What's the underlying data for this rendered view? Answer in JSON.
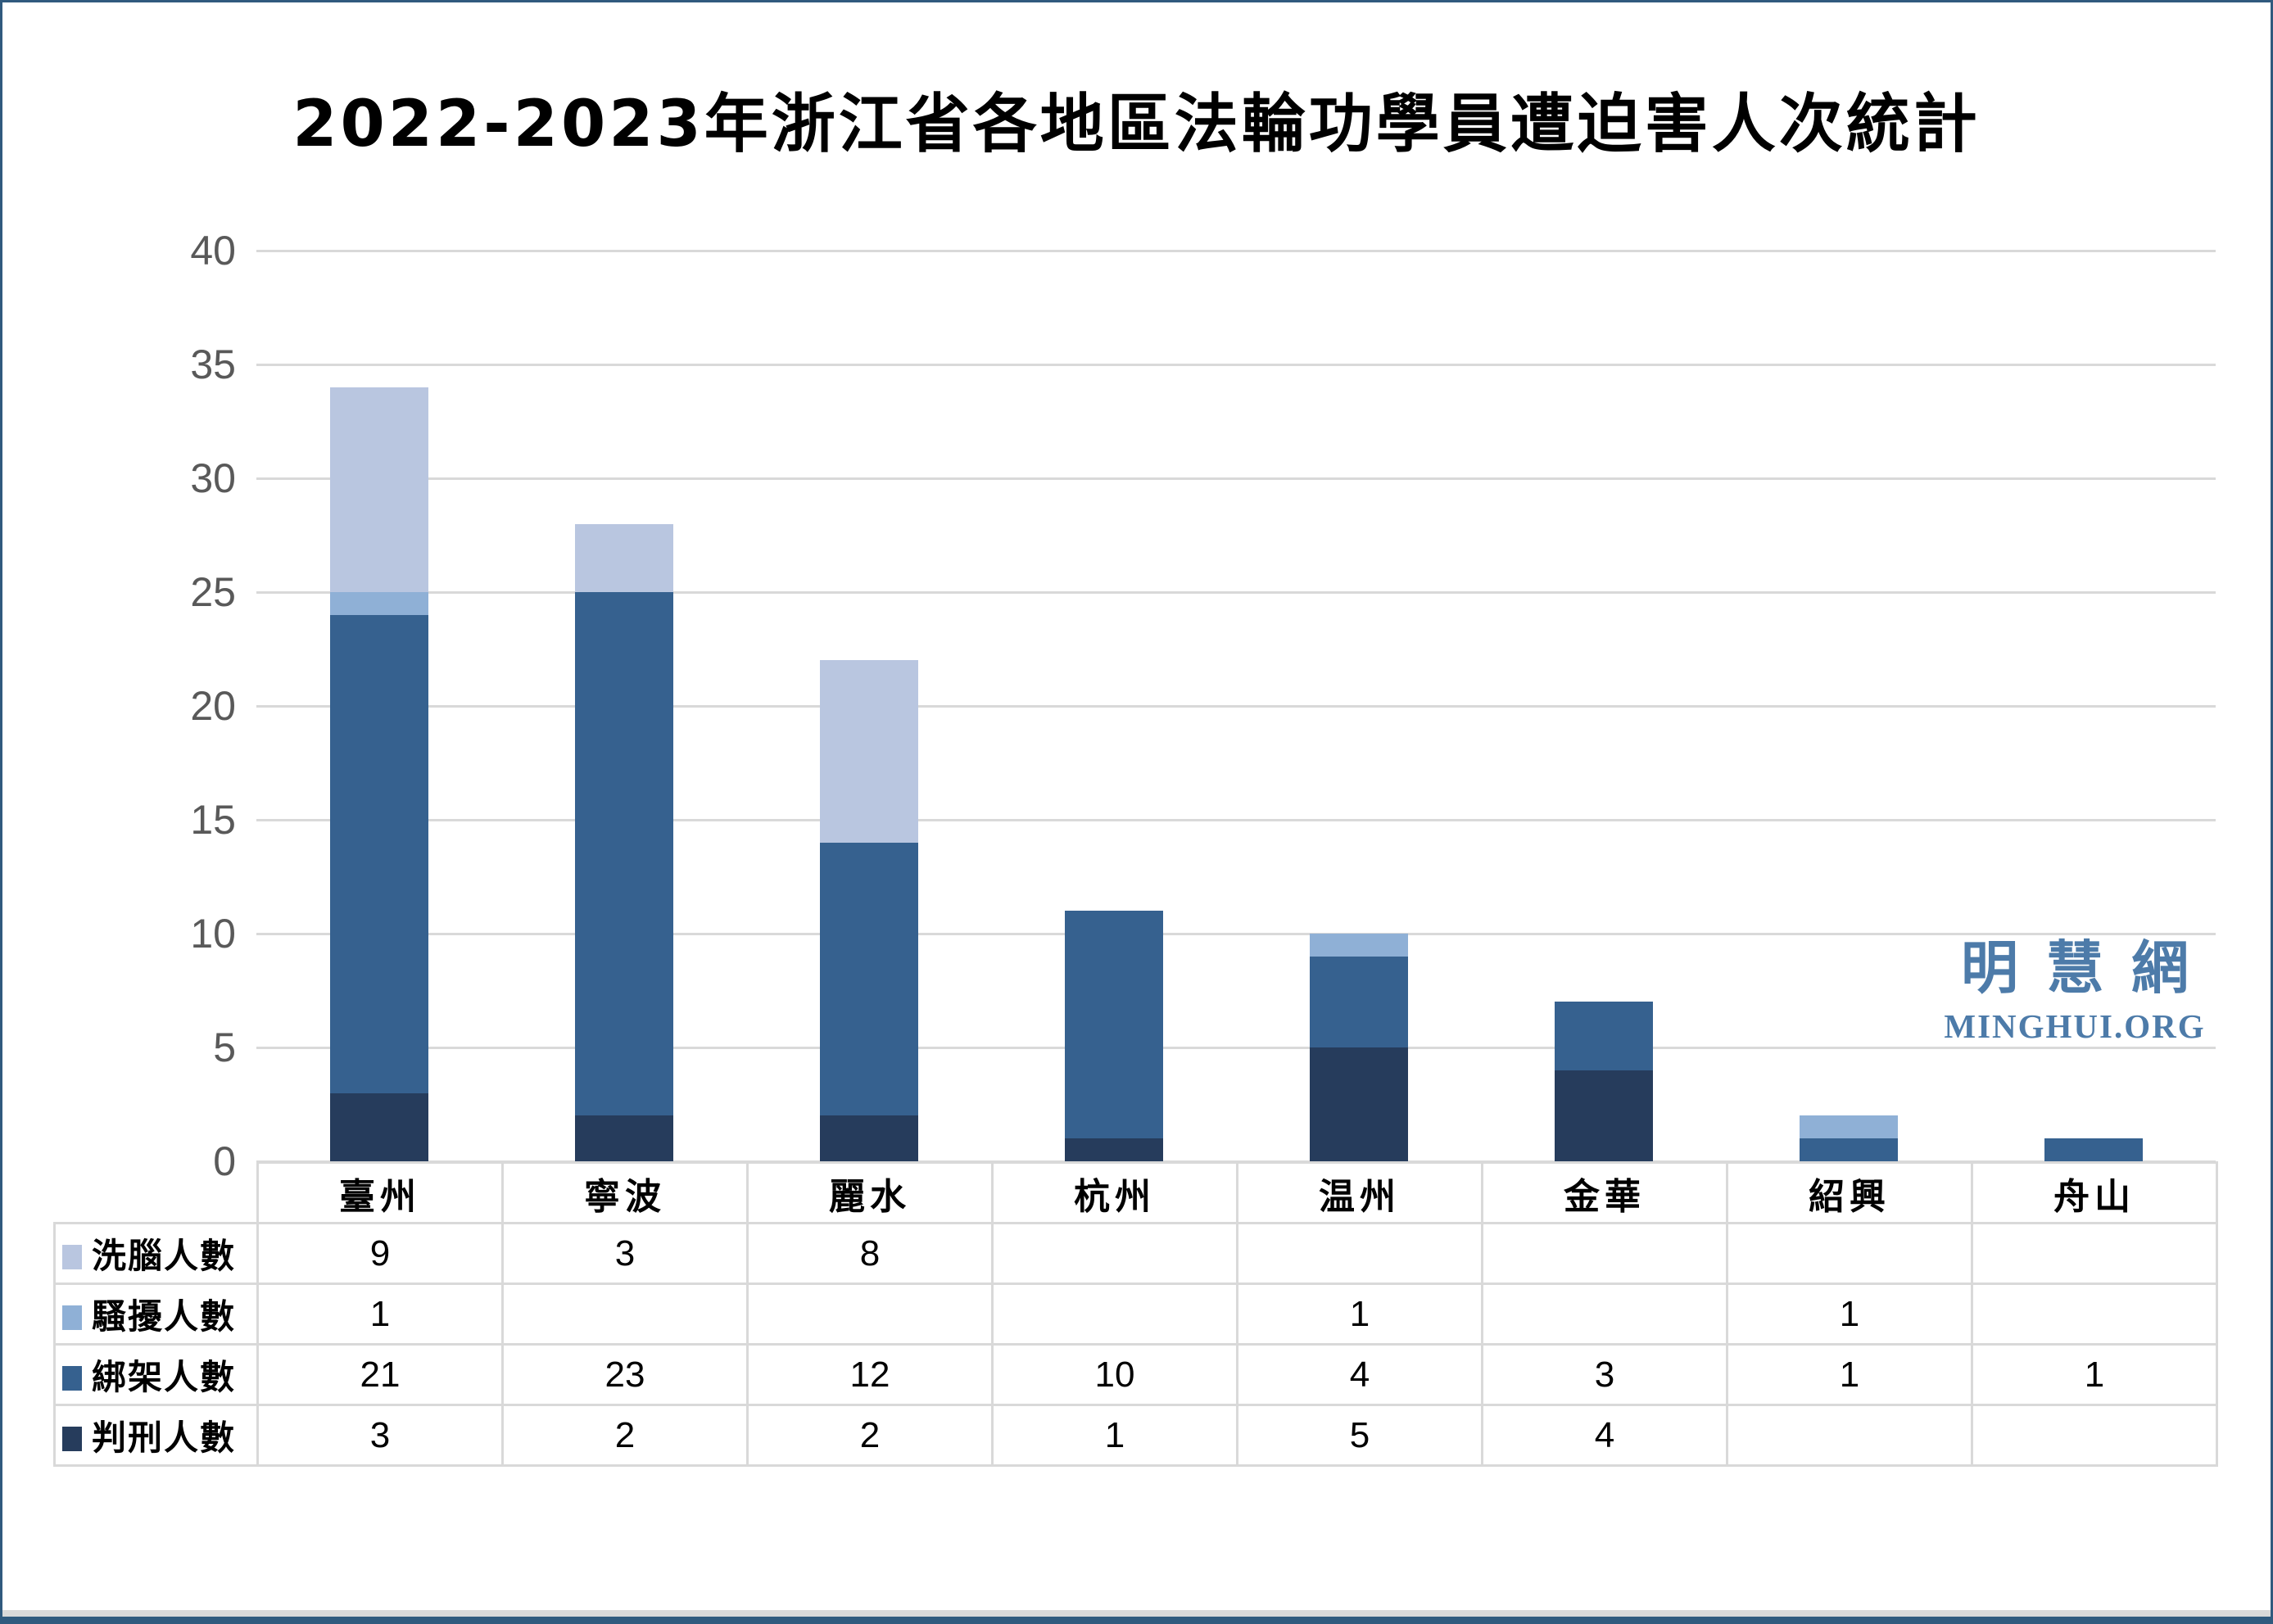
{
  "title": "2022-2023年浙江省各地區法輪功學員遭迫害人次統計",
  "watermark": {
    "cn": "明慧網",
    "en": "MINGHUI.ORG",
    "color": "#4d7ba9"
  },
  "colors": {
    "page_border": "#305a7e",
    "gridline": "#d9d9d9",
    "axis_label": "#595959",
    "table_border": "#d9d9d9"
  },
  "chart_data": {
    "type": "bar",
    "stacked": true,
    "title": "2022-2023年浙江省各地區法輪功學員遭迫害人次統計",
    "categories": [
      "臺州",
      "寧波",
      "麗水",
      "杭州",
      "温州",
      "金華",
      "紹興",
      "舟山"
    ],
    "series": [
      {
        "name": "洗腦人數",
        "color": "#b9c6e0",
        "values": [
          9,
          3,
          8,
          null,
          null,
          null,
          null,
          null
        ]
      },
      {
        "name": "騷擾人數",
        "color": "#8fb0d6",
        "values": [
          1,
          null,
          null,
          null,
          1,
          null,
          1,
          null
        ]
      },
      {
        "name": "綁架人數",
        "color": "#36618f",
        "values": [
          21,
          23,
          12,
          10,
          4,
          3,
          1,
          1
        ]
      },
      {
        "name": "判刑人數",
        "color": "#263c5c",
        "values": [
          3,
          2,
          2,
          1,
          5,
          4,
          null,
          null
        ]
      }
    ],
    "stack_order_bottom_to_top": [
      "判刑人數",
      "綁架人數",
      "騷擾人數",
      "洗腦人數"
    ],
    "totals": [
      34,
      28,
      22,
      11,
      10,
      7,
      2,
      1
    ],
    "xlabel": "",
    "ylabel": "",
    "ylim": [
      0,
      40
    ],
    "yticks": [
      0,
      5,
      10,
      15,
      20,
      25,
      30,
      35,
      40
    ],
    "grid": true,
    "legend_position": "table-left"
  }
}
